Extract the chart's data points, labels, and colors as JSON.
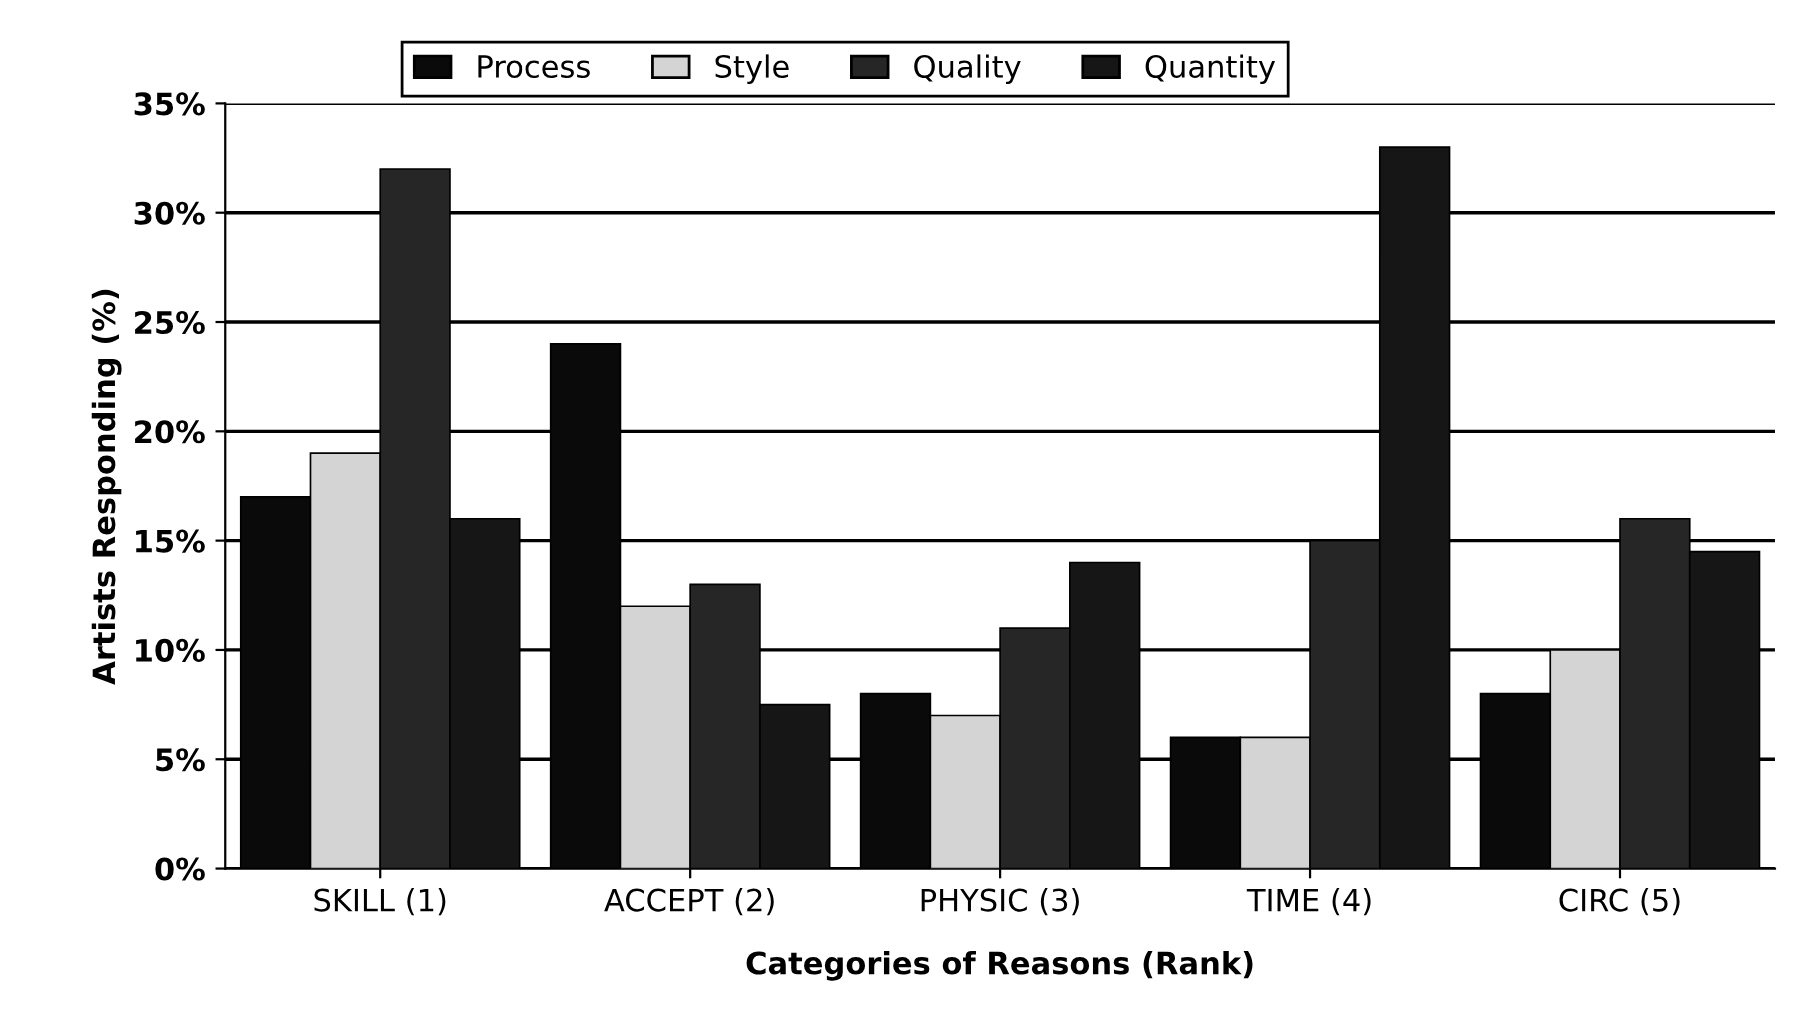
{
  "chart_data": {
    "type": "bar",
    "xlabel": "Categories of Reasons (Rank)",
    "ylabel": "Artists Responding (%)",
    "categories": [
      "SKILL (1)",
      "ACCEPT (2)",
      "PHYSIC (3)",
      "TIME (4)",
      "CIRC (5)"
    ],
    "series": [
      {
        "name": "Process",
        "color": "#0a0a0a",
        "values": [
          17,
          24,
          8,
          6,
          8
        ]
      },
      {
        "name": "Style",
        "color": "#d4d4d4",
        "values": [
          19,
          12,
          7,
          6,
          10
        ]
      },
      {
        "name": "Quality",
        "color": "#262626",
        "values": [
          32,
          13,
          11,
          15,
          16
        ]
      },
      {
        "name": "Quantity",
        "color": "#161616",
        "values": [
          16,
          7.5,
          14,
          33,
          14.5
        ]
      }
    ],
    "ylim": [
      0,
      35
    ],
    "yticks": [
      {
        "value": 0,
        "label": "0%"
      },
      {
        "value": 5,
        "label": "5%"
      },
      {
        "value": 10,
        "label": "10%"
      },
      {
        "value": 15,
        "label": "15%"
      },
      {
        "value": 20,
        "label": "20%"
      },
      {
        "value": 25,
        "label": "25%"
      },
      {
        "value": 30,
        "label": "30%"
      },
      {
        "value": 35,
        "label": "35%"
      }
    ],
    "grid": "y",
    "legend": "top"
  }
}
